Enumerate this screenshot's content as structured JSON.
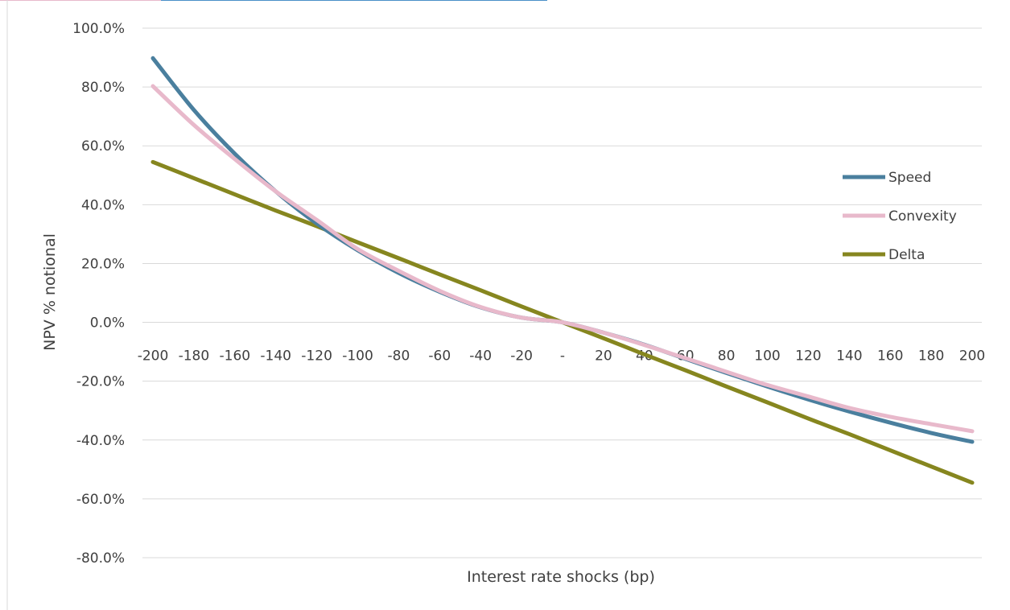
{
  "chart_data": {
    "type": "line",
    "title": "",
    "xlabel": "Interest rate shocks (bp)",
    "ylabel": "NPV % notional",
    "x": [
      -200,
      -180,
      -160,
      -140,
      -120,
      -100,
      -80,
      -60,
      -40,
      -20,
      0,
      20,
      40,
      60,
      80,
      100,
      120,
      140,
      160,
      180,
      200
    ],
    "x_tick_labels": [
      "-200",
      "-180",
      "-160",
      "-140",
      "-120",
      "-100",
      "-80",
      "-60",
      "-40",
      "-20",
      "-",
      "20",
      "40",
      "60",
      "80",
      "100",
      "120",
      "140",
      "160",
      "180",
      "200"
    ],
    "y_ticks": [
      100,
      80,
      60,
      40,
      20,
      0,
      -20,
      -40,
      -60,
      -80
    ],
    "y_tick_labels": [
      "100.0%",
      "80.0%",
      "60.0%",
      "40.0%",
      "20.0%",
      "0.0%",
      "-20.0%",
      "-40.0%",
      "-60.0%",
      "-80.0%"
    ],
    "ylim": [
      -80,
      100
    ],
    "grid": true,
    "legend_position": "right",
    "series": [
      {
        "name": "Speed",
        "color": "#4a7f9e",
        "values": [
          89.8,
          72.2,
          57.3,
          44.5,
          33.6,
          24.5,
          16.8,
          10.4,
          5.1,
          1.6,
          0,
          -3.5,
          -7.6,
          -12.4,
          -17.2,
          -21.8,
          -26.2,
          -30.3,
          -34.1,
          -37.6,
          -40.6
        ]
      },
      {
        "name": "Convexity",
        "color": "#e8b9cb",
        "values": [
          80.3,
          67.1,
          55.5,
          44.5,
          34.8,
          24.9,
          17.5,
          10.7,
          5.2,
          1.6,
          0,
          -3.5,
          -7.7,
          -12.2,
          -16.8,
          -21.3,
          -25.2,
          -29.1,
          -32.1,
          -34.6,
          -37.0
        ]
      },
      {
        "name": "Delta",
        "color": "#86861f",
        "values": [
          54.5,
          49.0,
          43.5,
          38.0,
          32.7,
          27.2,
          21.8,
          16.3,
          10.9,
          5.4,
          0,
          -5.4,
          -10.9,
          -16.3,
          -21.8,
          -27.2,
          -32.7,
          -38.0,
          -43.5,
          -49.0,
          -54.5
        ]
      }
    ]
  }
}
